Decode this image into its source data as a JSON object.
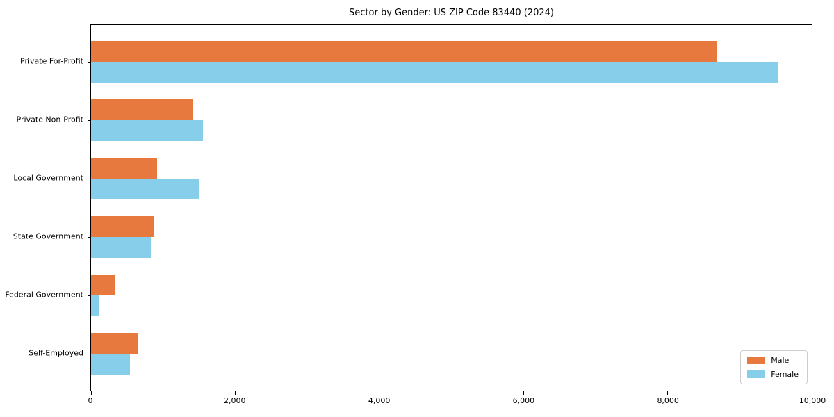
{
  "chart_data": {
    "type": "bar",
    "orientation": "horizontal",
    "title": "Sector by Gender: US ZIP Code 83440 (2024)",
    "categories": [
      "Private For-Profit",
      "Private Non-Profit",
      "Local Government",
      "State Government",
      "Federal Government",
      "Self-Employed"
    ],
    "series": [
      {
        "name": "Male",
        "color": "#e8793e",
        "values": [
          8680,
          1410,
          920,
          880,
          340,
          650
        ]
      },
      {
        "name": "Female",
        "color": "#87ceeb",
        "values": [
          9540,
          1550,
          1490,
          830,
          110,
          540
        ]
      }
    ],
    "xlabel": "",
    "ylabel": "",
    "xlim": [
      0,
      10000
    ],
    "xticks": [
      0,
      2000,
      4000,
      6000,
      8000,
      10000
    ],
    "xtick_labels": [
      "0",
      "2,000",
      "4,000",
      "6,000",
      "8,000",
      "10,000"
    ],
    "grid": false,
    "legend": {
      "position": "lower right"
    },
    "colors": {
      "axis": "#000000",
      "legend_border": "#cccccc",
      "background": "#ffffff"
    }
  }
}
